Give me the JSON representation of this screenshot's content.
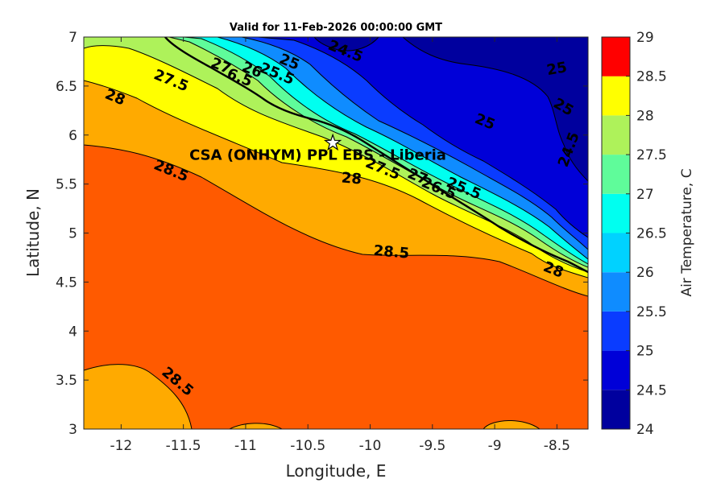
{
  "chart_data": {
    "type": "heatmap",
    "subtype": "filled-contour",
    "title": "Valid for 11-Feb-2026 00:00:00 GMT",
    "xlabel": "Longitude, E",
    "ylabel": "Latitude, N",
    "xlim": [
      -12.3,
      -8.25
    ],
    "ylim": [
      3,
      7
    ],
    "xticks": [
      "-12",
      "-11.5",
      "-11",
      "-10.5",
      "-10",
      "-9.5",
      "-9",
      "-8.5"
    ],
    "yticks": [
      "3",
      "3.5",
      "4",
      "4.5",
      "5",
      "5.5",
      "6",
      "6.5",
      "7"
    ],
    "colorbar": {
      "label": "Air Temperature, C",
      "ticks": [
        "24",
        "24.5",
        "25",
        "25.5",
        "26",
        "26.5",
        "27",
        "27.5",
        "28",
        "28.5",
        "29"
      ],
      "levels": [
        24,
        24.5,
        25,
        25.5,
        26,
        26.5,
        27,
        27.5,
        28,
        28.5,
        29
      ],
      "colors": [
        "#00009e",
        "#0000d8",
        "#0a3cff",
        "#0f8cff",
        "#00d2ff",
        "#00fff0",
        "#5ffc9a",
        "#aef25a",
        "#ffff00",
        "#ffaa00",
        "#ff5a00",
        "#ff0000"
      ]
    },
    "contour_labels": [
      {
        "text": "24.5",
        "x": -10.2,
        "y": 6.85
      },
      {
        "text": "25",
        "x": -10.65,
        "y": 6.74
      },
      {
        "text": "25.5",
        "x": -10.75,
        "y": 6.62
      },
      {
        "text": "26",
        "x": -10.95,
        "y": 6.66
      },
      {
        "text": "6.5",
        "x": -11.05,
        "y": 6.58
      },
      {
        "text": "27",
        "x": -11.2,
        "y": 6.7
      },
      {
        "text": "27.5",
        "x": -11.6,
        "y": 6.55
      },
      {
        "text": "28",
        "x": -12.05,
        "y": 6.38
      },
      {
        "text": "25",
        "x": -8.5,
        "y": 6.67
      },
      {
        "text": "25",
        "x": -8.45,
        "y": 6.28
      },
      {
        "text": "25",
        "x": -9.08,
        "y": 6.13
      },
      {
        "text": "24.5",
        "x": -8.4,
        "y": 5.85
      },
      {
        "text": "28.5",
        "x": -11.6,
        "y": 5.63
      },
      {
        "text": "28",
        "x": -10.15,
        "y": 5.55
      },
      {
        "text": "27.5",
        "x": -9.9,
        "y": 5.65
      },
      {
        "text": "27",
        "x": -9.62,
        "y": 5.57
      },
      {
        "text": "26.5",
        "x": -9.45,
        "y": 5.45
      },
      {
        "text": "25.5",
        "x": -9.25,
        "y": 5.45
      },
      {
        "text": "28.5",
        "x": -9.83,
        "y": 4.8
      },
      {
        "text": "28",
        "x": -8.53,
        "y": 4.62
      },
      {
        "text": "28.5",
        "x": -11.55,
        "y": 3.48
      }
    ],
    "site": {
      "name": "CSA (ONHYM) PPL EBS  - Liberia",
      "lon": -10.3,
      "lat": 5.92
    },
    "grid": false
  }
}
